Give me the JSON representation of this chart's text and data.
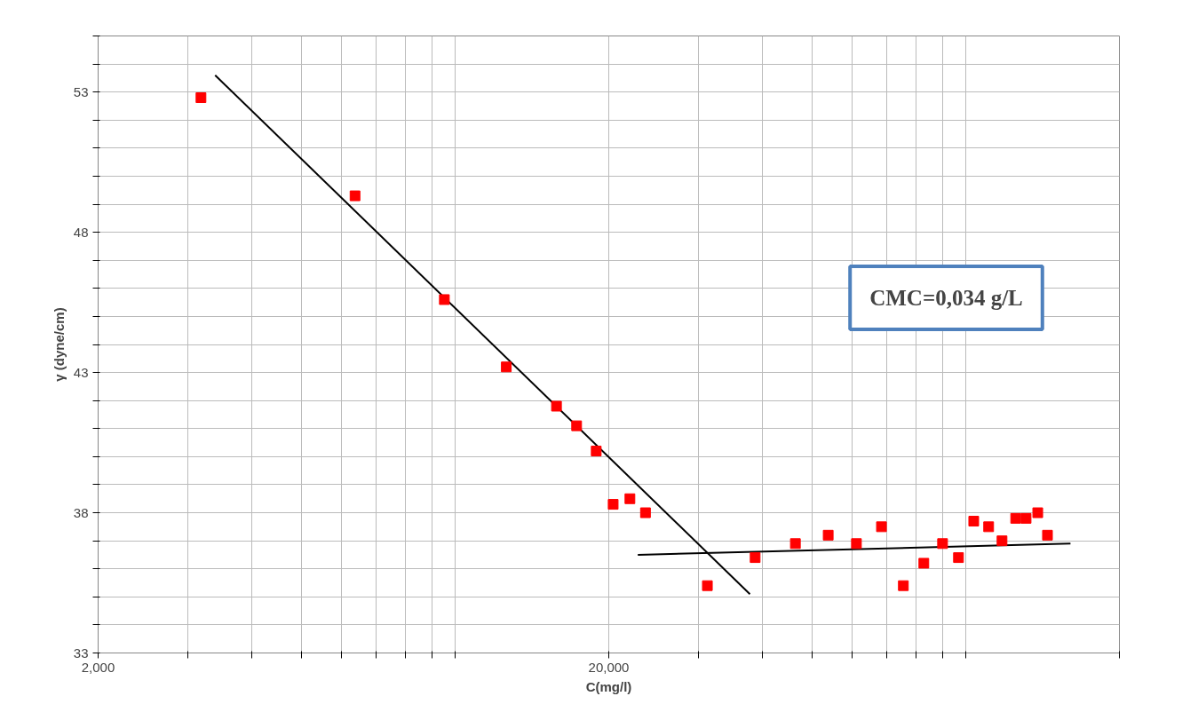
{
  "chart_data": {
    "type": "scatter",
    "xlabel": "C(mg/l)",
    "ylabel": "γ (dyne/cm)",
    "log": "x",
    "xlim": [
      2000,
      200000
    ],
    "ylim": [
      33,
      55
    ],
    "xticks": [
      {
        "value": 2000,
        "label": "2,000"
      },
      {
        "value": 3000,
        "label": null
      },
      {
        "value": 4000,
        "label": null
      },
      {
        "value": 5000,
        "label": null
      },
      {
        "value": 6000,
        "label": null
      },
      {
        "value": 7000,
        "label": null
      },
      {
        "value": 8000,
        "label": null
      },
      {
        "value": 9000,
        "label": null
      },
      {
        "value": 10000,
        "label": null
      },
      {
        "value": 20000,
        "label": "20,000"
      },
      {
        "value": 30000,
        "label": null
      },
      {
        "value": 40000,
        "label": null
      },
      {
        "value": 50000,
        "label": null
      },
      {
        "value": 60000,
        "label": null
      },
      {
        "value": 70000,
        "label": null
      },
      {
        "value": 80000,
        "label": null
      },
      {
        "value": 90000,
        "label": null
      },
      {
        "value": 100000,
        "label": null
      },
      {
        "value": 200000,
        "label": null
      }
    ],
    "yticks": [
      33,
      {
        "value": 34,
        "label": null
      },
      {
        "value": 35,
        "label": null
      },
      {
        "value": 36,
        "label": null
      },
      {
        "value": 37,
        "label": null
      },
      38,
      {
        "value": 39,
        "label": null
      },
      {
        "value": 40,
        "label": null
      },
      {
        "value": 41,
        "label": null
      },
      {
        "value": 42,
        "label": null
      },
      43,
      {
        "value": 44,
        "label": null
      },
      {
        "value": 45,
        "label": null
      },
      {
        "value": 46,
        "label": null
      },
      {
        "value": 47,
        "label": null
      },
      48,
      {
        "value": 49,
        "label": null
      },
      {
        "value": 50,
        "label": null
      },
      {
        "value": 51,
        "label": null
      },
      {
        "value": 52,
        "label": null
      },
      53,
      {
        "value": 54,
        "label": null
      },
      {
        "value": 55,
        "label": null
      }
    ],
    "grid": true,
    "marker": "square",
    "series": [
      {
        "color": "#ff0000",
        "x": [
          3180,
          6370,
          9530,
          12600,
          15800,
          17300,
          18900,
          20400,
          22000,
          23600,
          31200,
          38700,
          46400,
          53800,
          61100,
          68400,
          75500,
          82800,
          90100,
          96800,
          103700,
          110900,
          117800,
          125300,
          131300,
          138400,
          144600
        ],
        "values": [
          52.8,
          49.3,
          45.6,
          43.2,
          41.8,
          41.1,
          40.2,
          38.3,
          38.5,
          38.0,
          35.4,
          36.4,
          36.9,
          37.2,
          36.9,
          37.5,
          35.4,
          36.2,
          36.9,
          36.4,
          37.7,
          37.5,
          37.0,
          37.8,
          37.8,
          38.0,
          37.2
        ]
      },
      {
        "type": "line",
        "color": "#000000",
        "marker": "none",
        "line_style": "solid",
        "x": [
          3390,
          37800
        ],
        "values": [
          53.6,
          35.1
        ]
      },
      {
        "type": "line",
        "color": "#000000",
        "marker": "none",
        "line_style": "solid",
        "x": [
          22800,
          160400
        ],
        "values": [
          36.5,
          36.9
        ]
      }
    ],
    "annotations": [
      "CMC=0,034 g/L"
    ]
  }
}
